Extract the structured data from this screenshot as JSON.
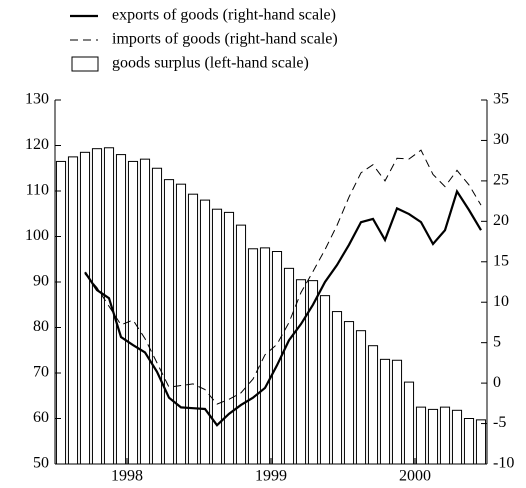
{
  "chart_data": {
    "type": "bar",
    "categories": [
      null,
      null,
      null,
      null,
      null,
      null,
      "1998",
      null,
      null,
      null,
      null,
      null,
      null,
      null,
      null,
      null,
      null,
      null,
      "1999",
      null,
      null,
      null,
      null,
      null,
      null,
      null,
      null,
      null,
      null,
      null,
      "2000",
      null,
      null,
      null,
      null,
      null
    ],
    "series": [
      {
        "name": "exports of goods (right-hand scale)",
        "type": "line",
        "axis": "y2",
        "color": "#000",
        "dash": false,
        "values": [
          null,
          null,
          13.7,
          11.5,
          10.5,
          5.7,
          4.7,
          3.8,
          1.4,
          -1.8,
          -3,
          -3.1,
          -3.2,
          -5.2,
          -3.8,
          -2.7,
          -1.8,
          -0.6,
          2.2,
          5.3,
          7.3,
          9.7,
          12.5,
          14.6,
          17.1,
          19.9,
          20.3,
          17.7,
          21.6,
          20.9,
          19.9,
          17.2,
          18.9,
          23.7,
          21.4,
          18.9
        ]
      },
      {
        "name": "imports of goods (right-hand scale)",
        "type": "line",
        "axis": "y2",
        "color": "#000",
        "dash": true,
        "values": [
          null,
          null,
          13.5,
          11.8,
          9.5,
          7.2,
          7.8,
          5.5,
          2.5,
          -0.5,
          -0.3,
          -0.1,
          -0.8,
          -2.6,
          -2,
          -1.2,
          0.5,
          3.5,
          4.8,
          7.5,
          11.2,
          13.8,
          16.5,
          19.5,
          23,
          26,
          27,
          25,
          27.8,
          27.7,
          28.8,
          25.8,
          24.3,
          26.3,
          24.5,
          22
        ]
      },
      {
        "name": "goods surplus (left-hand scale)",
        "type": "bar",
        "axis": "y",
        "color": "#fff",
        "values": [
          116.5,
          117.5,
          118.5,
          119.3,
          119.5,
          118,
          116.5,
          117,
          115,
          112.5,
          111.5,
          109.3,
          108,
          106,
          105.3,
          102.5,
          97.3,
          97.5,
          96.7,
          93,
          90.5,
          90.3,
          87,
          83.5,
          81.3,
          79.3,
          76,
          73,
          72.8,
          68,
          62.5,
          62,
          62.5,
          61.8,
          60,
          59.7
        ]
      }
    ],
    "ylim": [
      50,
      130
    ],
    "yticks": [
      50,
      60,
      70,
      80,
      90,
      100,
      110,
      120,
      130
    ],
    "y2lim": [
      -10,
      35
    ],
    "y2ticks": [
      -10,
      -5,
      0,
      5,
      10,
      15,
      20,
      25,
      30,
      35
    ]
  }
}
